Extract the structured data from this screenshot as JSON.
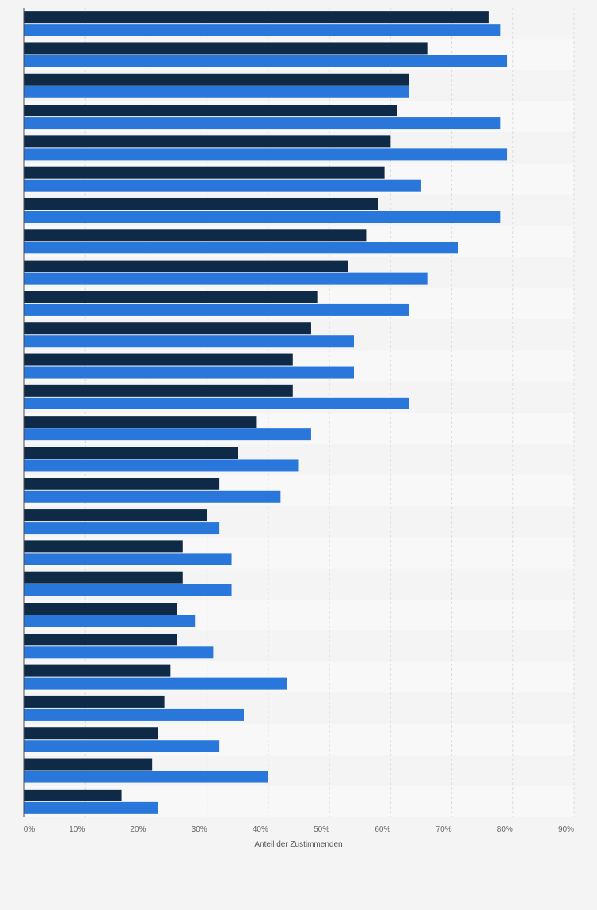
{
  "chart_data": {
    "type": "bar",
    "orientation": "horizontal",
    "xlabel": "Anteil der Zustimmenden",
    "xlim": [
      0,
      90
    ],
    "x_ticks": [
      "0%",
      "10%",
      "20%",
      "30%",
      "40%",
      "50%",
      "60%",
      "70%",
      "80%",
      "90%"
    ],
    "grid": true,
    "series": [
      {
        "color": "#0e2a47",
        "values": [
          76,
          66,
          63,
          61,
          60,
          59,
          58,
          56,
          53,
          48,
          47,
          44,
          44,
          38,
          35,
          32,
          30,
          26,
          26,
          25,
          25,
          24,
          23,
          22,
          21,
          16
        ]
      },
      {
        "color": "#2a77dc",
        "values": [
          78,
          79,
          63,
          78,
          79,
          65,
          78,
          71,
          66,
          63,
          54,
          54,
          63,
          47,
          45,
          42,
          32,
          34,
          34,
          28,
          31,
          43,
          36,
          32,
          40,
          22
        ]
      }
    ]
  }
}
